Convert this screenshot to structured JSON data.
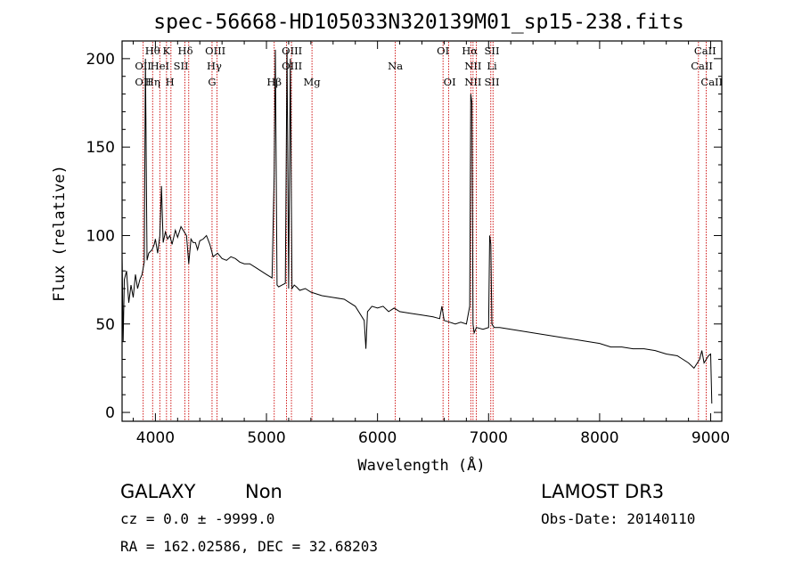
{
  "chart_data": {
    "type": "line",
    "title": "spec-56668-HD105033N320139M01_sp15-238.fits",
    "xlabel": "Wavelength (Å)",
    "ylabel": "Flux (relative)",
    "xlim": [
      3700,
      9100
    ],
    "ylim": [
      -5,
      210
    ],
    "x_ticks": [
      4000,
      5000,
      6000,
      7000,
      8000,
      9000
    ],
    "y_ticks": [
      0,
      50,
      100,
      150,
      200
    ],
    "series": [
      {
        "name": "flux",
        "x": [
          3700,
          3710,
          3720,
          3740,
          3760,
          3780,
          3800,
          3820,
          3840,
          3860,
          3880,
          3900,
          3910,
          3925,
          3940,
          3970,
          3990,
          4000,
          4020,
          4040,
          4055,
          4070,
          4090,
          4110,
          4130,
          4150,
          4180,
          4200,
          4230,
          4260,
          4280,
          4300,
          4320,
          4340,
          4360,
          4380,
          4400,
          4430,
          4460,
          4490,
          4520,
          4560,
          4600,
          4640,
          4680,
          4720,
          4760,
          4800,
          4850,
          4900,
          4950,
          5000,
          5050,
          5070,
          5080,
          5095,
          5110,
          5140,
          5170,
          5185,
          5200,
          5215,
          5230,
          5250,
          5270,
          5300,
          5350,
          5400,
          5450,
          5500,
          5600,
          5700,
          5800,
          5880,
          5895,
          5910,
          5950,
          6000,
          6050,
          6100,
          6150,
          6200,
          6300,
          6400,
          6500,
          6560,
          6580,
          6600,
          6650,
          6700,
          6750,
          6800,
          6830,
          6840,
          6850,
          6860,
          6870,
          6890,
          6950,
          7000,
          7010,
          7020,
          7030,
          7050,
          7100,
          7200,
          7300,
          7400,
          7500,
          7600,
          7700,
          7800,
          7900,
          8000,
          8100,
          8200,
          8300,
          8400,
          8500,
          8600,
          8700,
          8800,
          8850,
          8900,
          8920,
          8940,
          8960,
          8980,
          9000,
          9010
        ],
        "y": [
          90,
          40,
          75,
          80,
          62,
          72,
          65,
          78,
          70,
          75,
          78,
          85,
          200,
          86,
          90,
          92,
          95,
          98,
          90,
          100,
          128,
          96,
          102,
          98,
          100,
          95,
          103,
          99,
          105,
          102,
          100,
          84,
          98,
          96,
          96,
          92,
          97,
          98,
          100,
          95,
          88,
          90,
          87,
          86,
          88,
          87,
          85,
          84,
          84,
          82,
          80,
          78,
          76,
          135,
          205,
          72,
          71,
          72,
          73,
          205,
          70,
          200,
          70,
          72,
          71,
          69,
          70,
          68,
          67,
          66,
          65,
          64,
          60,
          52,
          36,
          57,
          60,
          59,
          60,
          57,
          59,
          57,
          56,
          55,
          54,
          53,
          60,
          52,
          51,
          50,
          51,
          50,
          60,
          180,
          175,
          50,
          45,
          48,
          47,
          48,
          100,
          95,
          50,
          48,
          48,
          47,
          46,
          45,
          44,
          43,
          42,
          41,
          40,
          39,
          37,
          37,
          36,
          36,
          35,
          33,
          32,
          28,
          25,
          30,
          35,
          28,
          30,
          32,
          33,
          5
        ]
      }
    ],
    "emission_lines": [
      {
        "label": "OII",
        "wavelength": 3727,
        "row": 2
      },
      {
        "label": "OII",
        "wavelength": 3727,
        "row": 3
      },
      {
        "label": "Hθ",
        "wavelength": 3797,
        "row": 1
      },
      {
        "label": "Hη",
        "wavelength": 3889,
        "row": 3
      },
      {
        "label": "HeI",
        "wavelength": 3970,
        "row": 2
      },
      {
        "label": "K",
        "wavelength": 3934,
        "row": 1
      },
      {
        "label": "H",
        "wavelength": 3968,
        "row": 3
      },
      {
        "label": "Hδ",
        "wavelength": 4102,
        "row": 1
      },
      {
        "label": "SII",
        "wavelength": 4072,
        "row": 2
      },
      {
        "label": "OIII",
        "wavelength": 4363,
        "row": 1
      },
      {
        "label": "Hγ",
        "wavelength": 4340,
        "row": 2
      },
      {
        "label": "G",
        "wavelength": 4305,
        "row": 3
      },
      {
        "label": "Hβ",
        "wavelength": 4861,
        "row": 3
      },
      {
        "label": "OIII",
        "wavelength": 4959,
        "row": 1
      },
      {
        "label": "OIII",
        "wavelength": 5007,
        "row": 2
      },
      {
        "label": "Mg",
        "wavelength": 5175,
        "row": 3
      },
      {
        "label": "Na",
        "wavelength": 5894,
        "row": 2
      },
      {
        "label": "OI",
        "wavelength": 6300,
        "row": 1
      },
      {
        "label": "OI",
        "wavelength": 6364,
        "row": 3
      },
      {
        "label": "Hα",
        "wavelength": 6563,
        "row": 1
      },
      {
        "label": "SII",
        "wavelength": 6716,
        "row": 1
      },
      {
        "label": "NII",
        "wavelength": 6548,
        "row": 2
      },
      {
        "label": "Li",
        "wavelength": 6707,
        "row": 2
      },
      {
        "label": "NII",
        "wavelength": 6583,
        "row": 3
      },
      {
        "label": "SII",
        "wavelength": 6731,
        "row": 3
      },
      {
        "label": "CaII",
        "wavelength": 8542,
        "row": 1
      },
      {
        "label": "CaII",
        "wavelength": 8498,
        "row": 2
      },
      {
        "label": "CaII",
        "wavelength": 8662,
        "row": 3
      }
    ],
    "line_positions_plot_wl": [
      3890,
      3975,
      4040,
      4100,
      4140,
      4265,
      4300,
      4510,
      4555,
      5070,
      5180,
      5225,
      5410,
      6160,
      6590,
      6640,
      6840,
      6860,
      6890,
      7020,
      7040,
      8890,
      8960
    ],
    "line_color": "#cc0000",
    "series_color": "#000000"
  },
  "info": {
    "object_class": "GALAXY",
    "subclass": "Non",
    "survey": "LAMOST DR3",
    "redshift": "cz =  0.0 ± -9999.0",
    "obs_date": "Obs-Date: 20140110",
    "coords": "RA = 162.02586, DEC =  32.68203"
  }
}
